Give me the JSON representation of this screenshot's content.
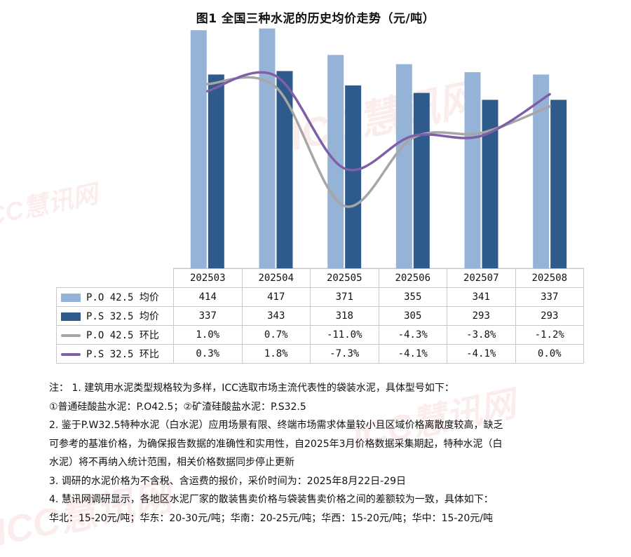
{
  "title": "图1 全国三种水泥的历史均价走势（元/吨）",
  "watermark": "ICC慧讯网",
  "colors": {
    "po_price": "#95b3d7",
    "ps_price": "#2e5a8c",
    "po_mom": "#a6a6a6",
    "ps_mom": "#7f60a8"
  },
  "chart_data": {
    "type": "bar",
    "categories": [
      "202503",
      "202504",
      "202505",
      "202506",
      "202507",
      "202508"
    ],
    "series": [
      {
        "name": "P.O 42.5 均价",
        "kind": "bar",
        "values": [
          414,
          417,
          371,
          355,
          341,
          337
        ],
        "labels": [
          "414",
          "417",
          "371",
          "355",
          "341",
          "337"
        ]
      },
      {
        "name": "P.S 32.5 均价",
        "kind": "bar",
        "values": [
          337,
          343,
          318,
          305,
          293,
          293
        ],
        "labels": [
          "337",
          "343",
          "318",
          "305",
          "293",
          "293"
        ]
      },
      {
        "name": "P.O 42.5 环比",
        "kind": "line",
        "values": [
          1.0,
          0.7,
          -11.0,
          -4.3,
          -3.8,
          -1.2
        ],
        "labels": [
          "1.0%",
          "0.7%",
          "-11.0%",
          "-4.3%",
          "-3.8%",
          "-1.2%"
        ]
      },
      {
        "name": "P.S 32.5 环比",
        "kind": "line",
        "values": [
          0.3,
          1.8,
          -7.3,
          -4.1,
          -4.1,
          0.0
        ],
        "labels": [
          "0.3%",
          "1.8%",
          "-7.3%",
          "-4.1%",
          "-4.1%",
          "0.0%"
        ]
      }
    ],
    "xlabel": "",
    "ylabel": "",
    "ylim": [
      0,
      430
    ],
    "y2lim": [
      -15,
      5
    ],
    "grid": false,
    "legend": "table-below"
  },
  "notes": [
    "注：  1. 建筑用水泥类型规格较为多样，ICC选取市场主流代表性的袋装水泥，具体型号如下：",
    "①普通硅酸盐水泥：P.O42.5；②矿渣硅酸盐水泥：P.S32.5",
    "2. 鉴于P.W32.5特种水泥（白水泥）应用场景有限、终端市场需求体量较小且区域价格离散度较高，缺乏",
    "可参考的基准价格，为确保报告数据的准确性和实用性，自2025年3月价格数据采集期起，特种水泥（白",
    "水泥）将不再纳入统计范围，相关价格数据同步停止更新",
    "3. 调研的水泥价格为不含税、含运费的报价，采价时间为：2025年8月22日-29日",
    "4. 慧讯网调研显示，各地区水泥厂家的散装售卖价格与袋装售卖价格之间的差额较为一致，具体如下：",
    "华北：15-20元/吨；华东：20-30元/吨；华南：20-25元/吨；华西：15-20元/吨；华中：15-20元/吨"
  ]
}
